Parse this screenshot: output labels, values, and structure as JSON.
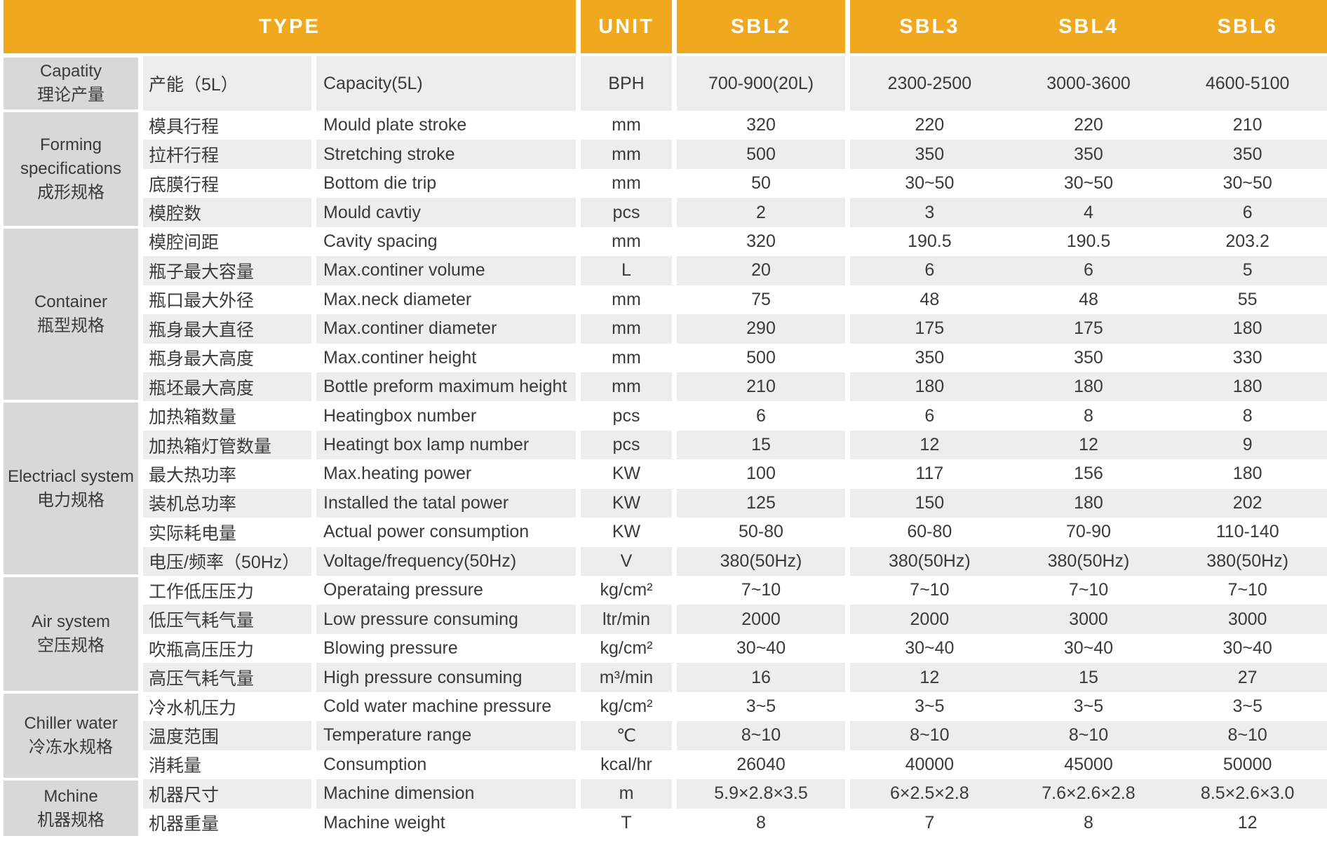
{
  "header": {
    "type_label": "TYPE",
    "unit_label": "UNIT",
    "models": [
      "SBL2",
      "SBL3",
      "SBL4",
      "SBL6"
    ]
  },
  "groups": [
    {
      "en": "Capatity",
      "cn": "理论产量",
      "row_start": 0,
      "row_count": 1
    },
    {
      "en": "Forming specifications",
      "cn": "成形规格",
      "row_start": 1,
      "row_count": 4
    },
    {
      "en": "Container",
      "cn": "瓶型规格",
      "row_start": 5,
      "row_count": 6
    },
    {
      "en": "Electriacl system",
      "cn": "电力规格",
      "row_start": 11,
      "row_count": 6
    },
    {
      "en": "Air system",
      "cn": "空压规格",
      "row_start": 17,
      "row_count": 4
    },
    {
      "en": "Chiller water",
      "cn": "冷冻水规格",
      "row_start": 21,
      "row_count": 3
    },
    {
      "en": "Mchine",
      "cn": "机器规格",
      "row_start": 24,
      "row_count": 2
    }
  ],
  "rows": [
    {
      "cn": "产能（5L）",
      "en": "Capacity(5L)",
      "unit": "BPH",
      "values": [
        "700-900(20L)",
        "2300-2500",
        "3000-3600",
        "4600-5100"
      ]
    },
    {
      "cn": "模具行程",
      "en": "Mould plate stroke",
      "unit": "mm",
      "values": [
        "320",
        "220",
        "220",
        "210"
      ]
    },
    {
      "cn": "拉杆行程",
      "en": "Stretching stroke",
      "unit": "mm",
      "values": [
        "500",
        "350",
        "350",
        "350"
      ]
    },
    {
      "cn": "底膜行程",
      "en": "Bottom die trip",
      "unit": "mm",
      "values": [
        "50",
        "30~50",
        "30~50",
        "30~50"
      ]
    },
    {
      "cn": "模腔数",
      "en": "Mould cavtiy",
      "unit": "pcs",
      "values": [
        "2",
        "3",
        "4",
        "6"
      ]
    },
    {
      "cn": "模腔间距",
      "en": "Cavity spacing",
      "unit": "mm",
      "values": [
        "320",
        "190.5",
        "190.5",
        "203.2"
      ]
    },
    {
      "cn": "瓶子最大容量",
      "en": "Max.continer volume",
      "unit": "L",
      "values": [
        "20",
        "6",
        "6",
        "5"
      ]
    },
    {
      "cn": "瓶口最大外径",
      "en": "Max.neck diameter",
      "unit": "mm",
      "values": [
        "75",
        "48",
        "48",
        "55"
      ]
    },
    {
      "cn": "瓶身最大直径",
      "en": "Max.continer diameter",
      "unit": "mm",
      "values": [
        "290",
        "175",
        "175",
        "180"
      ]
    },
    {
      "cn": "瓶身最大高度",
      "en": "Max.continer height",
      "unit": "mm",
      "values": [
        "500",
        "350",
        "350",
        "330"
      ]
    },
    {
      "cn": "瓶坯最大高度",
      "en": "Bottle preform maximum height",
      "unit": "mm",
      "values": [
        "210",
        "180",
        "180",
        "180"
      ]
    },
    {
      "cn": "加热箱数量",
      "en": "Heatingbox number",
      "unit": "pcs",
      "values": [
        "6",
        "6",
        "8",
        "8"
      ]
    },
    {
      "cn": "加热箱灯管数量",
      "en": "Heatingt box lamp number",
      "unit": "pcs",
      "values": [
        "15",
        "12",
        "12",
        "9"
      ]
    },
    {
      "cn": "最大热功率",
      "en": "Max.heating power",
      "unit": "KW",
      "values": [
        "100",
        "117",
        "156",
        "180"
      ]
    },
    {
      "cn": "装机总功率",
      "en": "Installed the tatal power",
      "unit": "KW",
      "values": [
        "125",
        "150",
        "180",
        "202"
      ]
    },
    {
      "cn": "实际耗电量",
      "en": "Actual power consumption",
      "unit": "KW",
      "values": [
        "50-80",
        "60-80",
        "70-90",
        "110-140"
      ]
    },
    {
      "cn": "电压/频率（50Hz）",
      "en": "Voltage/frequency(50Hz)",
      "unit": "V",
      "values": [
        "380(50Hz)",
        "380(50Hz)",
        "380(50Hz)",
        "380(50Hz)"
      ]
    },
    {
      "cn": "工作低压压力",
      "en": "Operataing pressure",
      "unit": "kg/cm²",
      "values": [
        "7~10",
        "7~10",
        "7~10",
        "7~10"
      ]
    },
    {
      "cn": "低压气耗气量",
      "en": "Low pressure consuming",
      "unit": "ltr/min",
      "values": [
        "2000",
        "2000",
        "3000",
        "3000"
      ]
    },
    {
      "cn": "吹瓶高压压力",
      "en": "Blowing pressure",
      "unit": "kg/cm²",
      "values": [
        "30~40",
        "30~40",
        "30~40",
        "30~40"
      ]
    },
    {
      "cn": "高压气耗气量",
      "en": "High pressure consuming",
      "unit": "m³/min",
      "values": [
        "16",
        "12",
        "15",
        "27"
      ]
    },
    {
      "cn": "冷水机压力",
      "en": "Cold water machine pressure",
      "unit": "kg/cm²",
      "values": [
        "3~5",
        "3~5",
        "3~5",
        "3~5"
      ]
    },
    {
      "cn": "温度范围",
      "en": "Temperature range",
      "unit": "℃",
      "values": [
        "8~10",
        "8~10",
        "8~10",
        "8~10"
      ]
    },
    {
      "cn": "消耗量",
      "en": "Consumption",
      "unit": "kcal/hr",
      "values": [
        "26040",
        "40000",
        "45000",
        "50000"
      ]
    },
    {
      "cn": "机器尺寸",
      "en": "Machine dimension",
      "unit": "m",
      "values": [
        "5.9×2.8×3.5",
        "6×2.5×2.8",
        "7.6×2.6×2.8",
        "8.5×2.6×3.0"
      ]
    },
    {
      "cn": "机器重量",
      "en": "Machine weight",
      "unit": "T",
      "values": [
        "8",
        "7",
        "8",
        "12"
      ]
    }
  ],
  "colors": {
    "header_bg": "#F0A81F",
    "header_text": "#FFFFFF",
    "group_bg": "#D8D8D8",
    "row_alt_bg": "#EDEDED",
    "row_bg": "#FFFFFF",
    "text": "#3A3A3A"
  }
}
